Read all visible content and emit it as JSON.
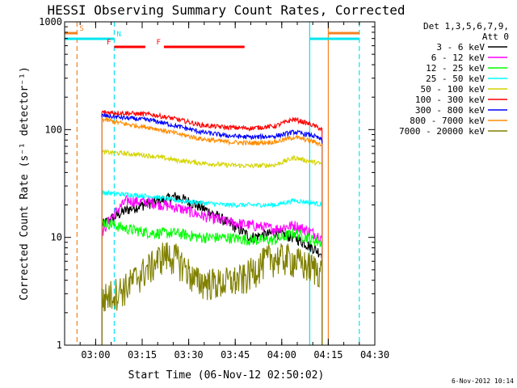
{
  "chart_data": {
    "type": "line",
    "title": "HESSI Observing Summary Count Rates, Corrected",
    "xlabel": "Start Time (06-Nov-12 02:50:02)",
    "ylabel": "Corrected Count Rate (s⁻¹ detector⁻¹)",
    "yscale": "log",
    "ylim": [
      1,
      1000
    ],
    "xlim_minutes_after_start": [
      0,
      100
    ],
    "x_ticks": [
      "03:00",
      "03:15",
      "03:30",
      "03:45",
      "04:00",
      "04:15",
      "04:30"
    ],
    "y_ticks": [
      "1",
      "10",
      "100",
      "1000"
    ],
    "legend": {
      "position": "right",
      "header1": "Det 1,3,5,6,7,9,",
      "header2": "Att 0"
    },
    "footer": "6-Nov-2012 10:14",
    "flags": [
      {
        "label": "S",
        "color": "#f58220",
        "start": 0,
        "end": 4
      },
      {
        "label": "N",
        "color": "#00e5ee",
        "start": 0,
        "end": 16
      },
      {
        "label": "F",
        "color": "#ff0000",
        "start": 16,
        "end": 26
      },
      {
        "label": "F",
        "color": "#ff0000",
        "start": 32,
        "end": 58
      }
    ],
    "right_flags": [
      {
        "label": "N",
        "color": "#00e5ee",
        "start": 79,
        "end": 95
      },
      {
        "label": "S",
        "color": "#f58220",
        "start": 85,
        "end": 95
      }
    ],
    "markers": [
      {
        "x": 4,
        "color": "#f58220",
        "style": "dashed"
      },
      {
        "x": 16,
        "color": "#00e5ee",
        "style": "dashed"
      },
      {
        "x": 79,
        "color": "#00e5ee",
        "style": "solid"
      },
      {
        "x": 85,
        "color": "#f58220",
        "style": "solid"
      },
      {
        "x": 95,
        "color": "#00e5ee",
        "style": "dashed"
      }
    ],
    "x_range_data": [
      12,
      83
    ],
    "series": [
      {
        "name": "3 - 6 keV",
        "color": "#000000",
        "x": [
          12,
          20,
          28,
          36,
          44,
          52,
          60,
          68,
          74,
          80,
          83
        ],
        "y": [
          13,
          18,
          21,
          24,
          19,
          14,
          10,
          11,
          10,
          8,
          7
        ]
      },
      {
        "name": "6 - 12 keV",
        "color": "#ff00ff",
        "x": [
          12,
          20,
          28,
          36,
          44,
          52,
          60,
          68,
          74,
          80,
          83
        ],
        "y": [
          11,
          22,
          21,
          19,
          16,
          14,
          13,
          12,
          13,
          11,
          10
        ]
      },
      {
        "name": "12 - 25 keV",
        "color": "#00ff00",
        "x": [
          12,
          20,
          28,
          36,
          44,
          52,
          60,
          68,
          74,
          80,
          83
        ],
        "y": [
          14,
          12,
          11,
          11,
          10,
          10,
          9.5,
          9.5,
          11,
          9.5,
          9
        ]
      },
      {
        "name": "25 - 50 keV",
        "color": "#00ffff",
        "x": [
          12,
          20,
          28,
          36,
          44,
          52,
          60,
          68,
          74,
          80,
          83
        ],
        "y": [
          26,
          25,
          24,
          22,
          21,
          20,
          20,
          20,
          22,
          21,
          20
        ]
      },
      {
        "name": "50 - 100 keV",
        "color": "#d4d400",
        "x": [
          12,
          20,
          28,
          36,
          44,
          52,
          60,
          68,
          74,
          80,
          83
        ],
        "y": [
          62,
          60,
          57,
          52,
          49,
          47,
          46,
          47,
          55,
          50,
          48
        ]
      },
      {
        "name": "100 - 300 keV",
        "color": "#ff0000",
        "x": [
          12,
          20,
          28,
          36,
          44,
          52,
          60,
          68,
          74,
          80,
          83
        ],
        "y": [
          145,
          142,
          138,
          125,
          110,
          105,
          103,
          108,
          125,
          110,
          100
        ]
      },
      {
        "name": "300 - 800 keV",
        "color": "#0000ff",
        "x": [
          12,
          20,
          28,
          36,
          44,
          52,
          60,
          68,
          74,
          80,
          83
        ],
        "y": [
          135,
          128,
          122,
          108,
          95,
          88,
          85,
          87,
          95,
          88,
          80
        ]
      },
      {
        "name": "800 - 7000 keV",
        "color": "#ff8c00",
        "x": [
          12,
          20,
          28,
          36,
          44,
          52,
          60,
          68,
          74,
          80,
          83
        ],
        "y": [
          125,
          112,
          104,
          92,
          82,
          77,
          75,
          77,
          85,
          78,
          72
        ]
      },
      {
        "name": "7000 - 20000 keV",
        "color": "#808000",
        "x": [
          12,
          20,
          28,
          32,
          36,
          42,
          50,
          58,
          66,
          72,
          78,
          83
        ],
        "y": [
          2.7,
          3.5,
          5.5,
          7.0,
          6.5,
          4.0,
          3.8,
          4.2,
          6.5,
          6.5,
          5.5,
          5.0
        ]
      }
    ]
  }
}
